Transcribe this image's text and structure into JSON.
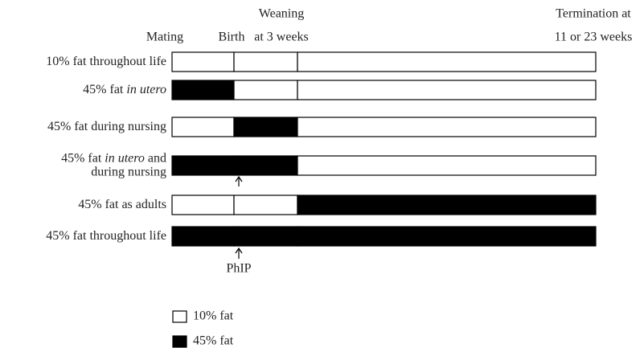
{
  "header": {
    "weaning": "Weaning",
    "weaning_sub": "at 3 weeks",
    "mating": "Mating",
    "birth": "Birth",
    "termination": "Termination at",
    "termination_sub": "11 or 23 weeks"
  },
  "rows": [
    {
      "label": [
        [
          {
            "text": "10% fat throughout life"
          }
        ]
      ],
      "segments": [
        "#ffffff",
        "#ffffff",
        "#ffffff"
      ]
    },
    {
      "label": [
        [
          {
            "text": "45% fat "
          },
          {
            "text": "in utero",
            "italic": true
          }
        ]
      ],
      "segments": [
        "#000000",
        "#ffffff",
        "#ffffff"
      ]
    },
    {
      "label": [
        [
          {
            "text": "45% fat during nursing"
          }
        ]
      ],
      "segments": [
        "#ffffff",
        "#000000",
        "#ffffff"
      ]
    },
    {
      "label": [
        [
          {
            "text": "45% fat "
          },
          {
            "text": "in utero",
            "italic": true
          },
          {
            "text": " and"
          }
        ],
        [
          {
            "text": "during nursing"
          }
        ]
      ],
      "segments": [
        "#000000",
        "#000000",
        "#ffffff"
      ]
    },
    {
      "label": [
        [
          {
            "text": "45% fat as adults"
          }
        ]
      ],
      "segments": [
        "#ffffff",
        "#ffffff",
        "#000000"
      ]
    },
    {
      "label": [
        [
          {
            "text": "45% fat throughout life"
          }
        ]
      ],
      "segments": [
        "#000000",
        "#000000",
        "#000000"
      ]
    }
  ],
  "annotation": "PhIP",
  "legend": [
    {
      "label": "10% fat",
      "color": "#ffffff"
    },
    {
      "label": "45% fat",
      "color": "#000000"
    }
  ]
}
